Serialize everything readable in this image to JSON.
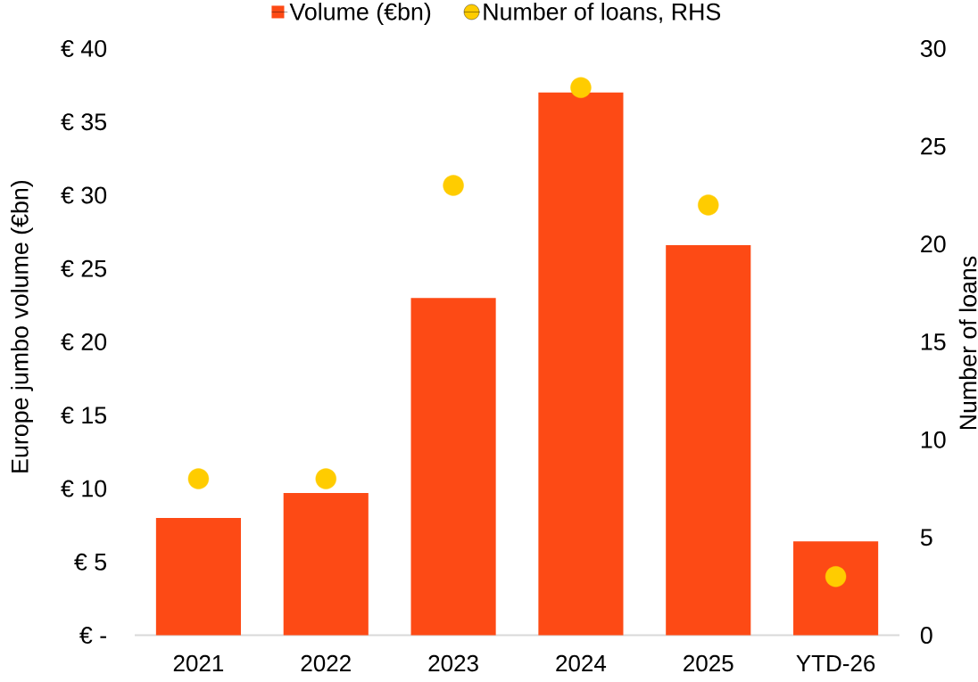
{
  "chart_data": {
    "type": "bar",
    "categories": [
      "2021",
      "2022",
      "2023",
      "2024",
      "2025",
      "YTD-26"
    ],
    "series": [
      {
        "name": "Volume (€bn)",
        "color": "#fd4a15",
        "values": [
          8.0,
          9.7,
          23.0,
          37.0,
          26.6,
          6.4
        ]
      },
      {
        "name": "Number of loans, RHS",
        "type": "scatter",
        "axis": "y2",
        "marker": "circle",
        "color": "#ffcc00",
        "values": [
          8,
          8,
          23,
          28,
          22,
          3
        ]
      }
    ],
    "ylabel": "Europe jumbo volume (€bn)",
    "y2label": "Number of loans",
    "ylim": [
      0,
      40
    ],
    "yticks": [
      {
        "value": 0,
        "label": "€ -"
      },
      {
        "value": 5,
        "label": "€ 5"
      },
      {
        "value": 10,
        "label": "€ 10"
      },
      {
        "value": 15,
        "label": "€ 15"
      },
      {
        "value": 20,
        "label": "€ 20"
      },
      {
        "value": 25,
        "label": "€ 25"
      },
      {
        "value": 30,
        "label": "€ 30"
      },
      {
        "value": 35,
        "label": "€ 35"
      },
      {
        "value": 40,
        "label": "€ 40"
      }
    ],
    "y2lim": [
      0,
      30
    ],
    "y2ticks": [
      0,
      5,
      10,
      15,
      20,
      25,
      30
    ],
    "legend": "top"
  }
}
